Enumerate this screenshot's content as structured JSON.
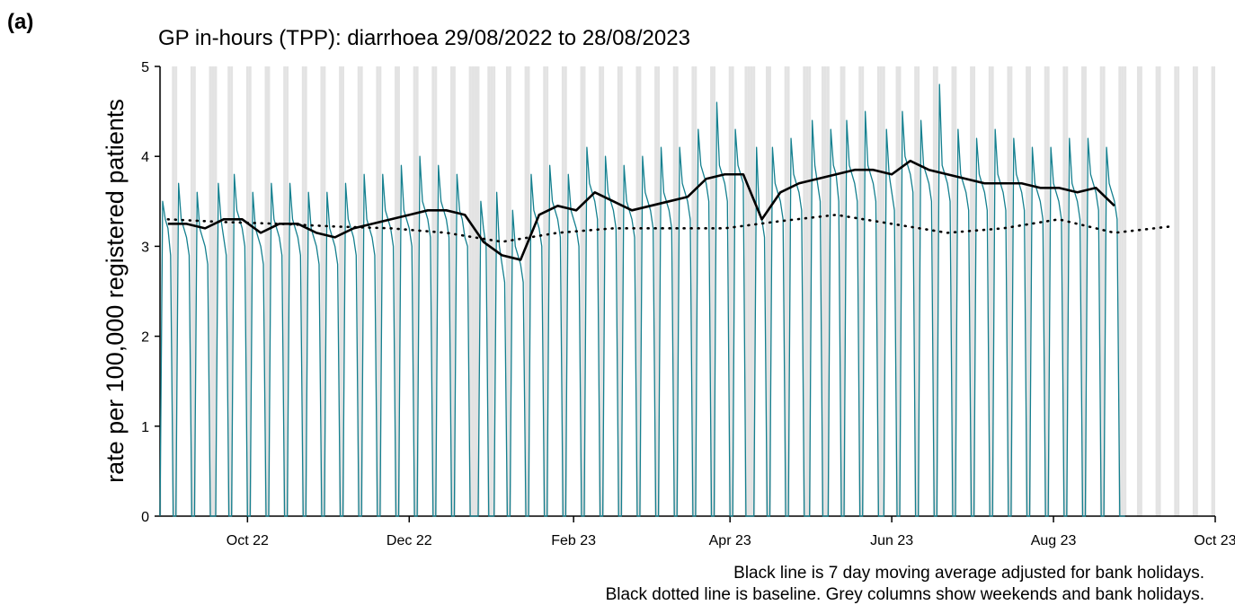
{
  "chart_data": {
    "type": "line",
    "panel_label": "(a)",
    "title": "GP in-hours (TPP): diarrhoea 29/08/2022 to 28/08/2023",
    "y_label": "rate per 100,000 registered patients",
    "notes": [
      "Black line is 7 day moving average adjusted for bank holidays.",
      "Black dotted line is baseline. Grey columns show weekends and bank holidays."
    ],
    "xlim": [
      0,
      398
    ],
    "xticks": [
      {
        "value": 33,
        "label": "Oct 22"
      },
      {
        "value": 94,
        "label": "Dec 22"
      },
      {
        "value": 156,
        "label": "Feb 23"
      },
      {
        "value": 215,
        "label": "Apr 23"
      },
      {
        "value": 276,
        "label": "Jun 23"
      },
      {
        "value": 337,
        "label": "Aug 23"
      },
      {
        "value": 398,
        "label": "Oct 23"
      }
    ],
    "ylim": [
      0,
      5
    ],
    "yticks": [
      0,
      1,
      2,
      3,
      4,
      5
    ],
    "shade_color": "#e3e3e3",
    "series": [
      {
        "color": "#15808f",
        "style": "thin",
        "values": [
          0,
          3.5,
          3.3,
          3.2,
          2.9,
          0,
          0,
          3.7,
          3.3,
          3.2,
          3.1,
          2.9,
          0,
          0,
          3.6,
          3.2,
          3.1,
          3.0,
          2.8,
          0,
          0,
          0,
          3.7,
          3.3,
          3.1,
          2.9,
          0,
          0,
          3.8,
          3.4,
          3.3,
          3.2,
          3.0,
          0,
          0,
          3.6,
          3.2,
          3.1,
          3.0,
          2.8,
          0,
          0,
          3.7,
          3.3,
          3.2,
          3.1,
          2.9,
          0,
          0,
          3.7,
          3.3,
          3.2,
          3.1,
          2.9,
          0,
          0,
          3.6,
          3.2,
          3.1,
          3.0,
          2.8,
          0,
          0,
          3.6,
          3.2,
          3.1,
          3.0,
          2.8,
          0,
          0,
          3.7,
          3.3,
          3.2,
          3.1,
          2.9,
          0,
          0,
          3.8,
          3.3,
          3.2,
          3.1,
          2.9,
          0,
          0,
          3.8,
          3.4,
          3.3,
          3.2,
          3.0,
          0,
          0,
          3.9,
          3.4,
          3.3,
          3.2,
          3.0,
          0,
          0,
          4.0,
          3.5,
          3.4,
          3.3,
          3.1,
          0,
          0,
          3.9,
          3.5,
          3.4,
          3.3,
          3.1,
          0,
          0,
          3.8,
          3.4,
          3.3,
          3.1,
          3.0,
          0,
          0,
          0,
          0,
          3.5,
          3.2,
          3.0,
          0,
          0,
          0,
          3.6,
          3.0,
          2.8,
          2.6,
          0,
          0,
          3.4,
          3.0,
          2.9,
          2.8,
          2.6,
          0,
          0,
          3.8,
          3.4,
          3.3,
          3.2,
          3.0,
          0,
          0,
          3.9,
          3.5,
          3.4,
          3.3,
          3.1,
          0,
          0,
          3.8,
          3.4,
          3.3,
          3.2,
          3.0,
          0,
          0,
          4.1,
          3.7,
          3.6,
          3.5,
          3.3,
          0,
          0,
          4.0,
          3.6,
          3.5,
          3.4,
          3.2,
          0,
          0,
          3.9,
          3.5,
          3.4,
          3.3,
          3.1,
          0,
          0,
          4.0,
          3.6,
          3.5,
          3.4,
          3.2,
          0,
          0,
          4.1,
          3.6,
          3.5,
          3.4,
          3.2,
          0,
          0,
          4.1,
          3.7,
          3.6,
          3.5,
          3.3,
          0,
          0,
          4.3,
          3.9,
          3.8,
          3.7,
          3.5,
          0,
          0,
          4.6,
          3.9,
          3.8,
          3.7,
          3.5,
          0,
          0,
          4.3,
          3.9,
          3.8,
          3.7,
          0,
          0,
          0,
          0,
          4.1,
          3.4,
          3.3,
          3.1,
          0,
          0,
          4.1,
          3.7,
          3.6,
          3.5,
          3.3,
          0,
          0,
          4.2,
          3.8,
          3.7,
          3.6,
          3.4,
          0,
          0,
          0,
          4.4,
          3.9,
          3.7,
          3.5,
          0,
          0,
          0,
          4.3,
          3.9,
          3.8,
          3.5,
          0,
          0,
          4.4,
          3.9,
          3.8,
          3.7,
          3.5,
          0,
          0,
          4.5,
          3.9,
          3.8,
          3.7,
          3.5,
          0,
          0,
          0,
          4.3,
          3.8,
          3.6,
          3.4,
          0,
          0,
          4.5,
          4.0,
          3.9,
          3.8,
          3.6,
          0,
          0,
          4.4,
          3.9,
          3.8,
          3.7,
          3.5,
          0,
          0,
          4.8,
          3.9,
          3.8,
          3.7,
          3.5,
          0,
          0,
          4.3,
          3.8,
          3.7,
          3.6,
          3.4,
          0,
          0,
          4.2,
          3.8,
          3.7,
          3.6,
          3.4,
          0,
          0,
          4.3,
          3.8,
          3.7,
          3.6,
          3.4,
          0,
          0,
          4.2,
          3.8,
          3.7,
          3.6,
          3.4,
          0,
          0,
          4.1,
          3.7,
          3.6,
          3.5,
          3.3,
          0,
          0,
          4.1,
          3.7,
          3.6,
          3.5,
          3.3,
          0,
          0,
          4.2,
          3.7,
          3.6,
          3.5,
          3.3,
          0,
          0,
          4.2,
          3.8,
          3.7,
          3.6,
          3.4,
          0,
          0,
          4.1,
          3.7,
          3.6,
          3.5,
          3.3,
          0,
          0,
          0
        ]
      },
      {
        "color": "#000000",
        "style": "solid",
        "x": [
          3,
          10,
          17,
          24,
          31,
          38,
          45,
          52,
          59,
          66,
          73,
          80,
          87,
          94,
          101,
          108,
          115,
          122,
          129,
          136,
          143,
          150,
          157,
          164,
          171,
          178,
          185,
          192,
          199,
          206,
          213,
          220,
          227,
          234,
          241,
          248,
          255,
          262,
          269,
          276,
          283,
          290,
          297,
          304,
          311,
          318,
          325,
          332,
          339,
          346,
          353,
          360
        ],
        "values": [
          3.25,
          3.25,
          3.2,
          3.3,
          3.3,
          3.15,
          3.25,
          3.25,
          3.15,
          3.1,
          3.2,
          3.25,
          3.3,
          3.35,
          3.4,
          3.4,
          3.35,
          3.05,
          2.9,
          2.85,
          3.35,
          3.45,
          3.4,
          3.6,
          3.5,
          3.4,
          3.45,
          3.5,
          3.55,
          3.75,
          3.8,
          3.8,
          3.3,
          3.6,
          3.7,
          3.75,
          3.8,
          3.85,
          3.85,
          3.8,
          3.95,
          3.85,
          3.8,
          3.75,
          3.7,
          3.7,
          3.7,
          3.65,
          3.65,
          3.6,
          3.65,
          3.45
        ]
      },
      {
        "color": "#000000",
        "style": "dotted",
        "x": [
          3,
          24,
          45,
          66,
          87,
          108,
          129,
          150,
          171,
          192,
          213,
          234,
          255,
          276,
          297,
          318,
          339,
          360,
          381
        ],
        "values": [
          3.3,
          3.27,
          3.25,
          3.22,
          3.2,
          3.15,
          3.05,
          3.15,
          3.2,
          3.2,
          3.2,
          3.28,
          3.35,
          3.25,
          3.15,
          3.2,
          3.3,
          3.15,
          3.22
        ]
      }
    ]
  }
}
